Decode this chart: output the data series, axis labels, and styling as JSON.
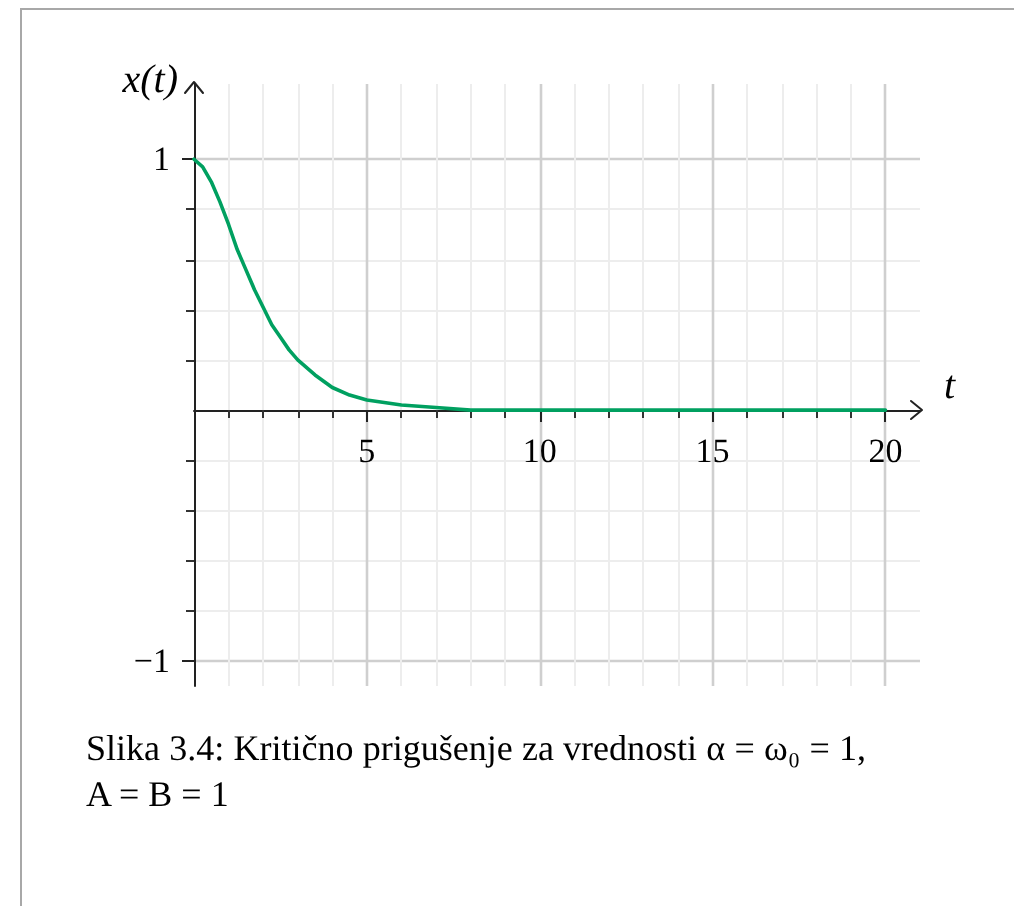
{
  "chart_data": {
    "type": "line",
    "xlabel": "t",
    "ylabel": "x(t)",
    "annotations": [
      "Slika 3.4: Kritično prigušenje za vrednosti α = ω₀ = 1, A = B = 1"
    ],
    "x": [
      0,
      0.25,
      0.5,
      0.75,
      1,
      1.25,
      1.5,
      1.75,
      2,
      2.25,
      2.5,
      2.75,
      3,
      3.5,
      4,
      4.5,
      5,
      6,
      7,
      8,
      10,
      15,
      20
    ],
    "series": [
      {
        "color": "#00a060",
        "values": [
          1,
          0.97,
          0.91,
          0.83,
          0.74,
          0.64,
          0.56,
          0.48,
          0.41,
          0.34,
          0.29,
          0.24,
          0.2,
          0.14,
          0.09,
          0.06,
          0.04,
          0.02,
          0.01,
          0,
          0,
          0,
          0
        ]
      }
    ],
    "xlim": [
      0,
      21
    ],
    "ylim": [
      -1.1,
      1.3
    ],
    "xticks": [
      {
        "value": 1,
        "label": null
      },
      {
        "value": 2,
        "label": null
      },
      {
        "value": 3,
        "label": null
      },
      {
        "value": 4,
        "label": null
      },
      5,
      {
        "value": 6,
        "label": null
      },
      {
        "value": 7,
        "label": null
      },
      {
        "value": 8,
        "label": null
      },
      {
        "value": 9,
        "label": null
      },
      10,
      {
        "value": 11,
        "label": null
      },
      {
        "value": 12,
        "label": null
      },
      {
        "value": 13,
        "label": null
      },
      {
        "value": 14,
        "label": null
      },
      15,
      {
        "value": 16,
        "label": null
      },
      {
        "value": 17,
        "label": null
      },
      {
        "value": 18,
        "label": null
      },
      {
        "value": 19,
        "label": null
      },
      20
    ],
    "yticks": [
      {
        "value": -1,
        "label": "−1"
      },
      {
        "value": -0.8,
        "label": null
      },
      {
        "value": -0.6,
        "label": null
      },
      {
        "value": -0.4,
        "label": null
      },
      {
        "value": -0.2,
        "label": null
      },
      {
        "value": 0.2,
        "label": null
      },
      {
        "value": 0.4,
        "label": null
      },
      {
        "value": 0.6,
        "label": null
      },
      {
        "value": 0.8,
        "label": null
      },
      1
    ],
    "grid": true,
    "marker": "none",
    "line_style": "solid"
  }
}
